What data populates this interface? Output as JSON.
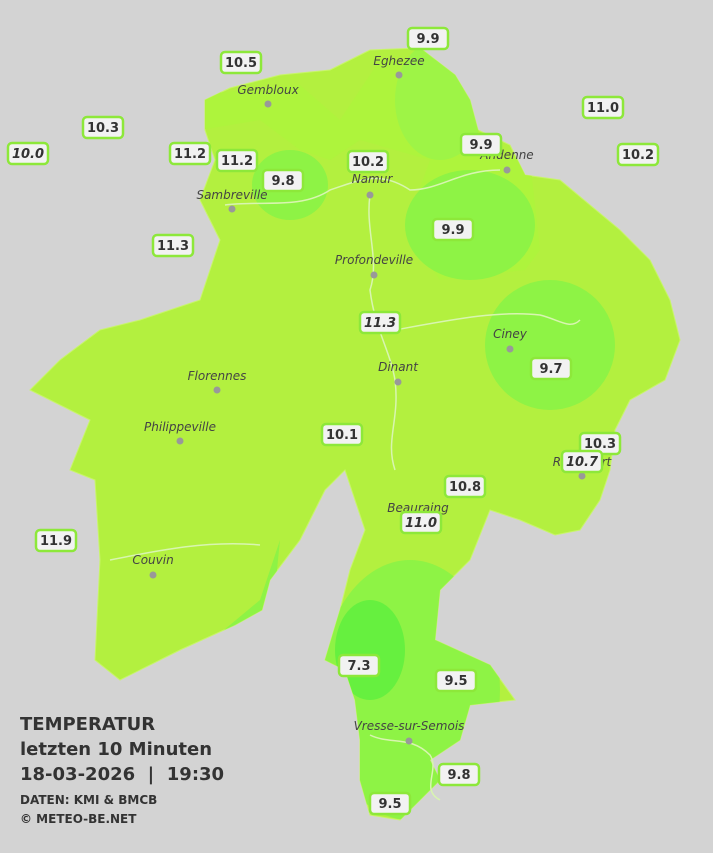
{
  "legend": {
    "title": "TEMPERATUR",
    "subtitle": "letzten 10 Minuten",
    "timestamp": "18-03-2026  |  19:30",
    "source": "DATEN: KMI & BMCB",
    "copyright": "© METEO-BE.NET"
  },
  "cities": [
    "Eghezee",
    "Gembloux",
    "Andenne",
    "Namur",
    "Sambreville",
    "Profondeville",
    "Ciney",
    "Dinant",
    "Florennes",
    "Philippeville",
    "Rochefort",
    "Beauraing",
    "Couvin",
    "Vresse-sur-Semois"
  ],
  "stations": [
    "10.5",
    "9.9",
    "10.3",
    "10.0",
    "11.2",
    "11.2",
    "9.8",
    "10.2",
    "9.9",
    "11.0",
    "10.2",
    "11.3",
    "9.9",
    "11.3",
    "9.7",
    "10.1",
    "10.3",
    "10.7",
    "10.8",
    "11.0",
    "11.9",
    "7.3",
    "9.5",
    "9.8",
    "9.5"
  ]
}
